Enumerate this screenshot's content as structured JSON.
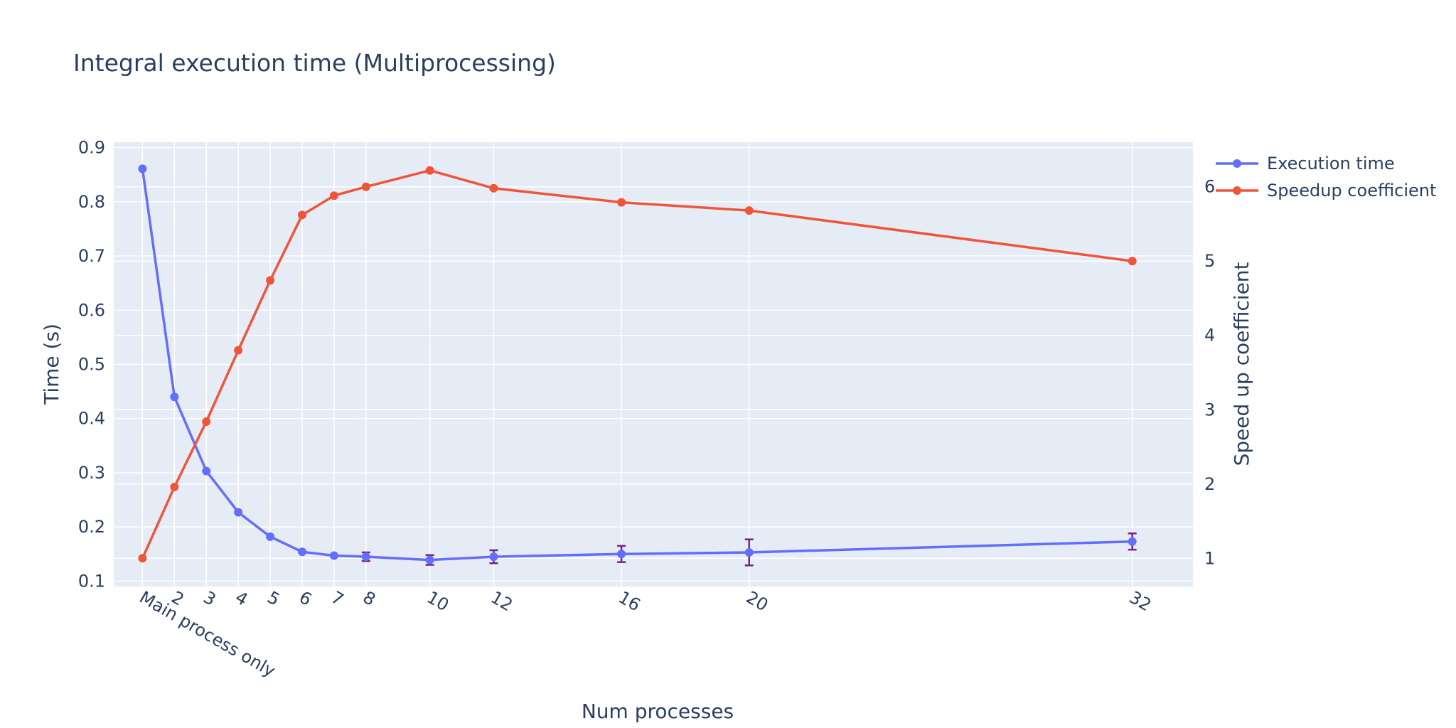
{
  "chart_data": {
    "type": "line",
    "title": "Integral execution time (Multiprocessing)",
    "xlabel": "Num processes",
    "ylabel": "Time (s)",
    "y2label": "Speed up coefficient",
    "x": [
      1,
      2,
      3,
      4,
      5,
      6,
      7,
      8,
      10,
      12,
      16,
      20,
      32
    ],
    "x_tick_labels": [
      "Main process only",
      "2",
      "3",
      "4",
      "5",
      "6",
      "7",
      "8",
      "10",
      "12",
      "16",
      "20",
      "32"
    ],
    "xlim": [
      0.1,
      33.9
    ],
    "ylim": [
      0.09,
      0.91
    ],
    "y_ticks": [
      0.1,
      0.2,
      0.3,
      0.4,
      0.5,
      0.6,
      0.7,
      0.8,
      0.9
    ],
    "y_tick_labels": [
      "0.1",
      "0.2",
      "0.3",
      "0.4",
      "0.5",
      "0.6",
      "0.7",
      "0.8",
      "0.9"
    ],
    "y2lim": [
      0.62,
      6.6
    ],
    "y2_ticks": [
      1,
      2,
      3,
      4,
      5,
      6
    ],
    "y2_tick_labels": [
      "1",
      "2",
      "3",
      "4",
      "5",
      "6"
    ],
    "grid": true,
    "legend_position": "top-right",
    "series": [
      {
        "name": "Execution time",
        "axis": "left",
        "color": "#636efa",
        "values": [
          0.861,
          0.44,
          0.303,
          0.227,
          0.182,
          0.154,
          0.147,
          0.145,
          0.139,
          0.145,
          0.15,
          0.153,
          0.173
        ],
        "error": [
          0.0,
          0.0,
          0.0,
          0.0,
          0.0,
          0.0,
          0.0,
          0.008,
          0.009,
          0.012,
          0.015,
          0.024,
          0.015
        ],
        "error_color": "#7a1f8a"
      },
      {
        "name": "Speedup coefficient",
        "axis": "right",
        "color": "#ef553b",
        "values": [
          1.0,
          1.96,
          2.84,
          3.8,
          4.74,
          5.62,
          5.88,
          6.0,
          6.22,
          5.98,
          5.79,
          5.68,
          5.0
        ]
      }
    ]
  }
}
